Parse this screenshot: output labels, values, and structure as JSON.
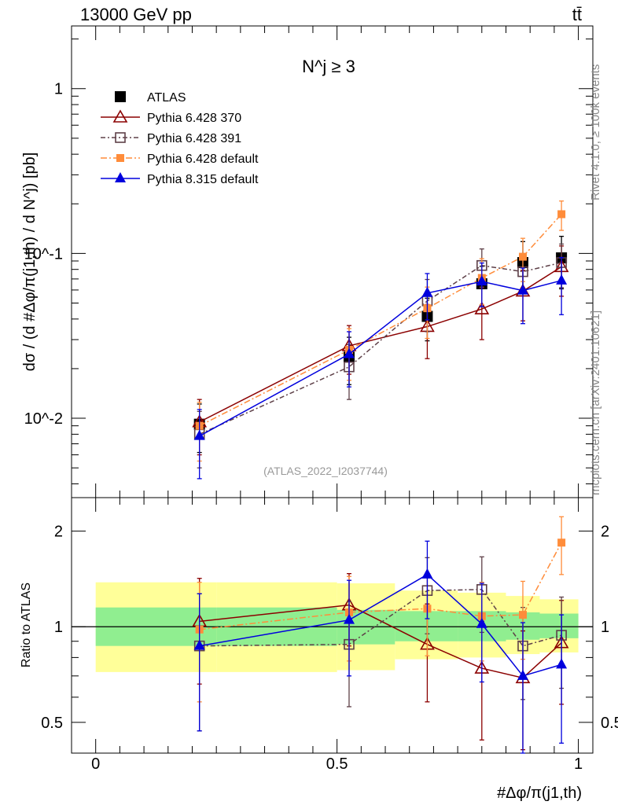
{
  "header": {
    "left_label": "13000 GeV pp",
    "right_label": "tt̄"
  },
  "side_labels": {
    "rivet": "Rivet 4.1.0, ≥ 100k events",
    "mcplots": "mcplots.cern.ch [arXiv:2401.10621]"
  },
  "chart_data": [
    {
      "type": "scatter",
      "panel": "main",
      "title": "N^j ≥ 3",
      "annotation": "(ATLAS_2022_I2037744)",
      "ylabel": "dσ / (d #Δφ/π(j1,th) / d N^j) [pb]",
      "yscale": "log",
      "ylim": [
        0.0033,
        2.4
      ],
      "xlim": [
        -0.05,
        1.03
      ],
      "ytick_labels": [
        "1",
        "10^-1",
        "10^-2"
      ],
      "x": [
        0.215,
        0.525,
        0.687,
        0.8,
        0.885,
        0.965
      ],
      "series": [
        {
          "name": "ATLAS",
          "color": "#000000",
          "marker": "square-filled",
          "values": [
            0.0092,
            0.0235,
            0.0415,
            0.0655,
            0.088,
            0.094
          ],
          "err": [
            0.003,
            0.0075,
            0.012,
            0.018,
            0.03,
            0.033
          ]
        },
        {
          "name": "Pythia 6.428 370",
          "color": "#8b0000",
          "marker": "triangle-open",
          "values": [
            0.0095,
            0.0275,
            0.036,
            0.046,
            0.059,
            0.083
          ],
          "err": [
            0.0035,
            0.009,
            0.013,
            0.016,
            0.02,
            0.028
          ]
        },
        {
          "name": "Pythia 6.428 391",
          "color": "#5e4048",
          "marker": "square-open",
          "values": [
            0.008,
            0.0205,
            0.0515,
            0.0845,
            0.0775,
            0.088
          ],
          "err": [
            0.003,
            0.0075,
            0.018,
            0.022,
            0.02,
            0.026
          ]
        },
        {
          "name": "Pythia 6.428 default",
          "color": "#ff8c3a",
          "marker": "square-filled-small",
          "values": [
            0.009,
            0.026,
            0.0465,
            0.071,
            0.0955,
            0.173
          ],
          "err": [
            0.0035,
            0.009,
            0.016,
            0.022,
            0.028,
            0.035
          ]
        },
        {
          "name": "Pythia 8.315 default",
          "color": "#0000dd",
          "marker": "triangle-filled",
          "values": [
            0.0078,
            0.0245,
            0.0575,
            0.0675,
            0.0595,
            0.0685
          ],
          "err": [
            0.0035,
            0.009,
            0.018,
            0.02,
            0.022,
            0.026
          ]
        }
      ],
      "legend_position": "top-left"
    },
    {
      "type": "scatter",
      "panel": "ratio",
      "ylabel": "Ratio to ATLAS",
      "xlabel": "#Δφ/π(j1,th)",
      "yscale": "log",
      "ylim": [
        0.4,
        2.55
      ],
      "xlim": [
        -0.05,
        1.03
      ],
      "ytick_labels": [
        "0.5",
        "1",
        "2"
      ],
      "xtick_labels": [
        "0",
        "0.5",
        "1"
      ],
      "x": [
        0.215,
        0.525,
        0.687,
        0.8,
        0.885,
        0.965
      ],
      "bands": {
        "edges": [
          0.0,
          0.25,
          0.5,
          0.62,
          0.75,
          0.85,
          0.92,
          1.0
        ],
        "inner": [
          [
            0.87,
            1.15
          ],
          [
            0.87,
            1.15
          ],
          [
            0.88,
            1.13
          ],
          [
            0.9,
            1.12
          ],
          [
            0.9,
            1.12
          ],
          [
            0.91,
            1.11
          ],
          [
            0.92,
            1.1
          ]
        ],
        "outer": [
          [
            0.72,
            1.38
          ],
          [
            0.72,
            1.38
          ],
          [
            0.73,
            1.37
          ],
          [
            0.79,
            1.3
          ],
          [
            0.8,
            1.28
          ],
          [
            0.82,
            1.25
          ],
          [
            0.83,
            1.22
          ]
        ],
        "inner_color": "#90ee90",
        "outer_color": "#ffff99"
      },
      "series": [
        {
          "name": "Pythia 6.428 370",
          "color": "#8b0000",
          "marker": "triangle-open",
          "values": [
            1.04,
            1.17,
            0.88,
            0.74,
            0.69,
            0.89
          ],
          "err": [
            0.38,
            0.3,
            0.3,
            0.3,
            0.28,
            0.32
          ]
        },
        {
          "name": "Pythia 6.428 391",
          "color": "#5e4048",
          "marker": "square-open",
          "values": [
            0.87,
            0.88,
            1.3,
            1.31,
            0.87,
            0.94
          ],
          "err": [
            0.4,
            0.32,
            0.35,
            0.35,
            0.28,
            0.3
          ]
        },
        {
          "name": "Pythia 6.428 default",
          "color": "#ff8c3a",
          "marker": "square-filled-small",
          "values": [
            0.98,
            1.11,
            1.14,
            1.08,
            1.09,
            1.84
          ],
          "err": [
            0.4,
            0.33,
            0.33,
            0.3,
            0.3,
            0.38
          ]
        },
        {
          "name": "Pythia 8.315 default",
          "color": "#0000dd",
          "marker": "triangle-filled",
          "values": [
            0.87,
            1.05,
            1.46,
            1.02,
            0.7,
            0.76
          ],
          "err": [
            0.4,
            0.35,
            0.4,
            0.35,
            0.33,
            0.33
          ]
        }
      ],
      "reference_line": 1
    }
  ]
}
